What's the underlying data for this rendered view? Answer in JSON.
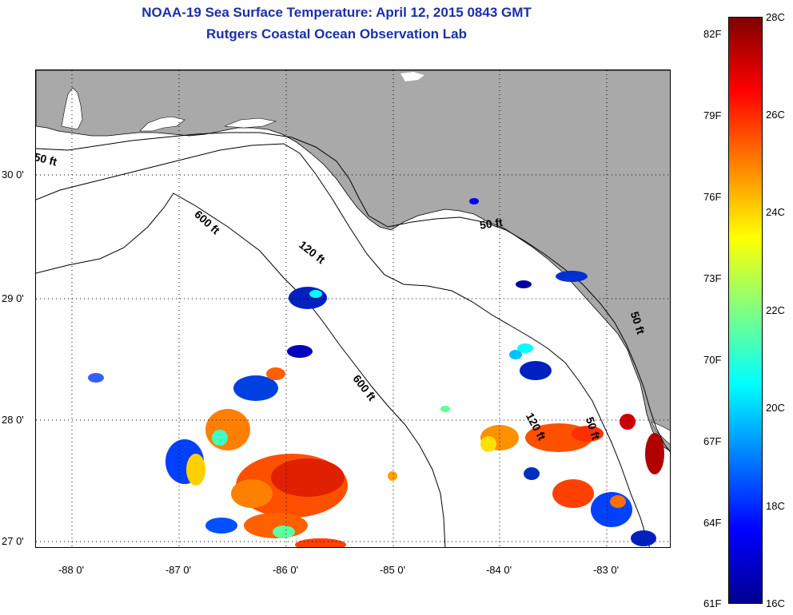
{
  "title": {
    "line1": "NOAA-19 Sea Surface Temperature:  April 12, 2015 0843 GMT",
    "line2": "Rutgers Coastal Ocean Observation Lab"
  },
  "axes": {
    "latitude_labels": [
      {
        "value": 30,
        "label": "30 0'"
      },
      {
        "value": 29,
        "label": "29 0'"
      },
      {
        "value": 28,
        "label": "28 0'"
      },
      {
        "value": 27,
        "label": "27 0'"
      }
    ],
    "longitude_labels": [
      {
        "value": -88,
        "label": "-88 0'"
      },
      {
        "value": -87,
        "label": "-87 0'"
      },
      {
        "value": -86,
        "label": "-86 0'"
      },
      {
        "value": -85,
        "label": "-85 0'"
      },
      {
        "value": -84,
        "label": "-84 0'"
      },
      {
        "value": -83,
        "label": "-83 0'"
      }
    ],
    "lon_range": [
      -88.33,
      -82.4
    ],
    "lat_range": [
      26.95,
      30.87
    ]
  },
  "depth_contours": [
    {
      "label": "50 ft"
    },
    {
      "label": "600 ft"
    },
    {
      "label": "120 ft"
    },
    {
      "label": "50 ft"
    },
    {
      "label": "600 ft"
    },
    {
      "label": "120 ft"
    },
    {
      "label": "50 ft"
    },
    {
      "label": "50 ft"
    }
  ],
  "colorbar": {
    "min_c": 16,
    "max_c": 28,
    "celsius_labels": [
      {
        "value": 28,
        "label": "28C"
      },
      {
        "value": 26,
        "label": "26C"
      },
      {
        "value": 24,
        "label": "24C"
      },
      {
        "value": 22,
        "label": "22C"
      },
      {
        "value": 20,
        "label": "20C"
      },
      {
        "value": 18,
        "label": "18C"
      },
      {
        "value": 16,
        "label": "16C"
      }
    ],
    "fahrenheit_labels": [
      {
        "value": 82,
        "label": "82F"
      },
      {
        "value": 79,
        "label": "79F"
      },
      {
        "value": 76,
        "label": "76F"
      },
      {
        "value": 73,
        "label": "73F"
      },
      {
        "value": 70,
        "label": "70F"
      },
      {
        "value": 67,
        "label": "67F"
      },
      {
        "value": 64,
        "label": "64F"
      },
      {
        "value": 61,
        "label": "61F"
      }
    ]
  },
  "colors": {
    "land": "#a9a9a9",
    "ocean": "#ffffff",
    "title": "#1c2fa8",
    "temp_cold": "#00008f",
    "temp_cool": "#0050ff",
    "temp_mid": "#00ffff",
    "temp_warm": "#ff6000",
    "temp_hot": "#cc0000"
  }
}
